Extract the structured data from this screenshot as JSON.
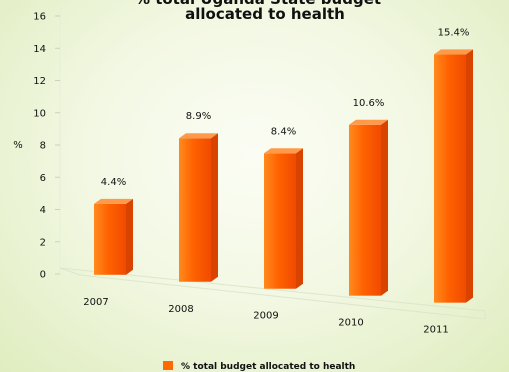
{
  "chart_data": {
    "type": "bar",
    "title_lines": [
      "% total Uganda State budget",
      "allocated to health"
    ],
    "ylabel": "%",
    "ylim": [
      0,
      16
    ],
    "yticks": [
      0,
      2,
      4,
      6,
      8,
      10,
      12,
      14,
      16
    ],
    "categories": [
      "2007",
      "2008",
      "2009",
      "2010",
      "2011"
    ],
    "series": [
      {
        "name": "% total budget allocated to health",
        "values": [
          4.4,
          8.9,
          8.4,
          10.6,
          15.4
        ],
        "labels": [
          "4.4%",
          "8.9%",
          "8.4%",
          "10.6%",
          "15.4%"
        ],
        "color": "#ff6a00"
      }
    ],
    "grid": false,
    "legend_position": "bottom-center",
    "style": "3d-bar"
  }
}
